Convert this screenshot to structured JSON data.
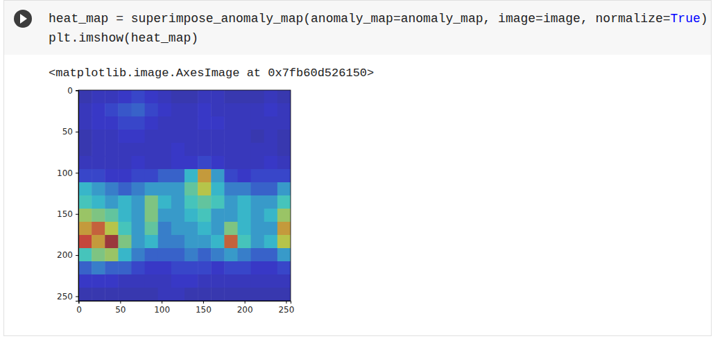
{
  "cell": {
    "code": [
      [
        {
          "text": "heat_map = superimpose_anomaly_map(anomaly_map=anomaly_map, image=image, normalize=",
          "kind": "plain"
        },
        {
          "text": "True",
          "kind": "keyword"
        },
        {
          "text": ")",
          "kind": "plain"
        }
      ],
      [
        {
          "text": "plt.imshow(heat_map)",
          "kind": "plain"
        }
      ]
    ],
    "output_text": "<matplotlib.image.AxesImage at 0x7fb60d526150>"
  },
  "chart_data": {
    "type": "heatmap",
    "xlim": [
      -0.5,
      255.5
    ],
    "ylim": [
      255.5,
      -0.5
    ],
    "xticks": [
      0,
      50,
      100,
      150,
      200,
      250
    ],
    "yticks": [
      0,
      50,
      100,
      150,
      200,
      250
    ],
    "cells": [
      [
        0.08,
        0.1,
        0.1,
        0.12,
        0.15,
        0.12,
        0.1,
        0.08,
        0.08,
        0.1,
        0.1,
        0.08,
        0.08,
        0.08,
        0.1,
        0.08
      ],
      [
        0.1,
        0.12,
        0.15,
        0.18,
        0.2,
        0.15,
        0.12,
        0.1,
        0.1,
        0.12,
        0.1,
        0.1,
        0.1,
        0.1,
        0.12,
        0.1
      ],
      [
        0.1,
        0.12,
        0.12,
        0.15,
        0.15,
        0.12,
        0.1,
        0.1,
        0.1,
        0.12,
        0.12,
        0.1,
        0.1,
        0.1,
        0.1,
        0.1
      ],
      [
        0.08,
        0.1,
        0.1,
        0.12,
        0.12,
        0.1,
        0.1,
        0.1,
        0.1,
        0.1,
        0.1,
        0.1,
        0.1,
        0.08,
        0.1,
        0.08
      ],
      [
        0.08,
        0.1,
        0.1,
        0.1,
        0.1,
        0.1,
        0.1,
        0.12,
        0.1,
        0.1,
        0.1,
        0.1,
        0.1,
        0.1,
        0.1,
        0.08
      ],
      [
        0.1,
        0.1,
        0.1,
        0.1,
        0.12,
        0.1,
        0.1,
        0.12,
        0.12,
        0.15,
        0.12,
        0.1,
        0.1,
        0.1,
        0.12,
        0.1
      ],
      [
        0.15,
        0.15,
        0.12,
        0.12,
        0.15,
        0.15,
        0.2,
        0.2,
        0.35,
        0.7,
        0.3,
        0.15,
        0.12,
        0.15,
        0.15,
        0.15
      ],
      [
        0.35,
        0.3,
        0.25,
        0.2,
        0.25,
        0.3,
        0.3,
        0.3,
        0.45,
        0.6,
        0.35,
        0.25,
        0.25,
        0.2,
        0.2,
        0.3
      ],
      [
        0.4,
        0.35,
        0.3,
        0.35,
        0.3,
        0.5,
        0.35,
        0.3,
        0.4,
        0.45,
        0.4,
        0.3,
        0.35,
        0.3,
        0.3,
        0.4
      ],
      [
        0.55,
        0.5,
        0.45,
        0.35,
        0.3,
        0.5,
        0.3,
        0.3,
        0.35,
        0.4,
        0.3,
        0.3,
        0.35,
        0.3,
        0.35,
        0.55
      ],
      [
        0.7,
        0.8,
        0.6,
        0.4,
        0.3,
        0.45,
        0.25,
        0.3,
        0.3,
        0.35,
        0.3,
        0.5,
        0.35,
        0.3,
        0.3,
        0.7
      ],
      [
        0.85,
        0.7,
        0.95,
        0.5,
        0.3,
        0.35,
        0.25,
        0.25,
        0.3,
        0.3,
        0.35,
        0.8,
        0.4,
        0.3,
        0.35,
        0.6
      ],
      [
        0.4,
        0.5,
        0.55,
        0.35,
        0.25,
        0.2,
        0.2,
        0.2,
        0.25,
        0.2,
        0.25,
        0.3,
        0.25,
        0.2,
        0.2,
        0.3
      ],
      [
        0.2,
        0.25,
        0.2,
        0.2,
        0.15,
        0.12,
        0.12,
        0.15,
        0.15,
        0.15,
        0.12,
        0.15,
        0.15,
        0.12,
        0.12,
        0.15
      ],
      [
        0.12,
        0.12,
        0.12,
        0.1,
        0.1,
        0.1,
        0.1,
        0.12,
        0.12,
        0.1,
        0.1,
        0.1,
        0.1,
        0.1,
        0.1,
        0.1
      ],
      [
        0.08,
        0.08,
        0.08,
        0.08,
        0.08,
        0.08,
        0.1,
        0.1,
        0.08,
        0.08,
        0.08,
        0.08,
        0.08,
        0.08,
        0.08,
        0.08
      ]
    ]
  }
}
